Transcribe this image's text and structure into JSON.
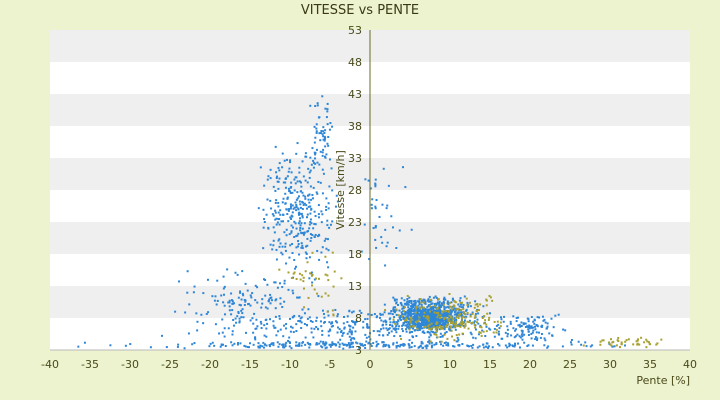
{
  "chart_data": {
    "type": "scatter",
    "title": "VITESSE vs PENTE",
    "xlabel": "Pente [%]",
    "ylabel": "Vitesse [km/h]",
    "xlim": [
      -40,
      40
    ],
    "ylim": [
      3,
      53
    ],
    "xticks": [
      -40,
      -35,
      -30,
      -25,
      -20,
      -15,
      -10,
      -5,
      0,
      5,
      10,
      15,
      20,
      25,
      30,
      35,
      40
    ],
    "yticks": [
      3,
      8,
      13,
      18,
      23,
      28,
      33,
      38,
      43,
      48,
      53
    ],
    "grid": "alternating horizontal bands",
    "legend": "none",
    "series": [
      {
        "color": "#2e86d6",
        "clusters": [
          {
            "x": [
              -42,
              40
            ],
            "y": [
              3.2,
              4.4
            ],
            "n": 260
          },
          {
            "x": [
              -30,
              30
            ],
            "y": [
              3.5,
              9.5
            ],
            "n": 320
          },
          {
            "x": [
              -28,
              -2
            ],
            "y": [
              5,
              16
            ],
            "n": 150
          },
          {
            "x": [
              -15,
              -3
            ],
            "y": [
              14,
              36
            ],
            "n": 320
          },
          {
            "x": [
              -8,
              -4
            ],
            "y": [
              30,
              44
            ],
            "n": 60
          },
          {
            "x": [
              0,
              15
            ],
            "y": [
              5.5,
              11.5
            ],
            "n": 650
          },
          {
            "x": [
              3,
              12
            ],
            "y": [
              6,
              10
            ],
            "n": 300
          },
          {
            "x": [
              -3,
              6
            ],
            "y": [
              14,
              33
            ],
            "n": 40
          },
          {
            "x": [
              15,
              25
            ],
            "y": [
              4,
              9
            ],
            "n": 90
          }
        ]
      },
      {
        "color": "#a8a030",
        "clusters": [
          {
            "x": [
              0,
              20
            ],
            "y": [
              4,
              12
            ],
            "n": 220
          },
          {
            "x": [
              -12,
              -2
            ],
            "y": [
              8,
              20
            ],
            "n": 40
          },
          {
            "x": [
              25,
              40
            ],
            "y": [
              3.3,
              5
            ],
            "n": 40
          }
        ]
      }
    ]
  }
}
